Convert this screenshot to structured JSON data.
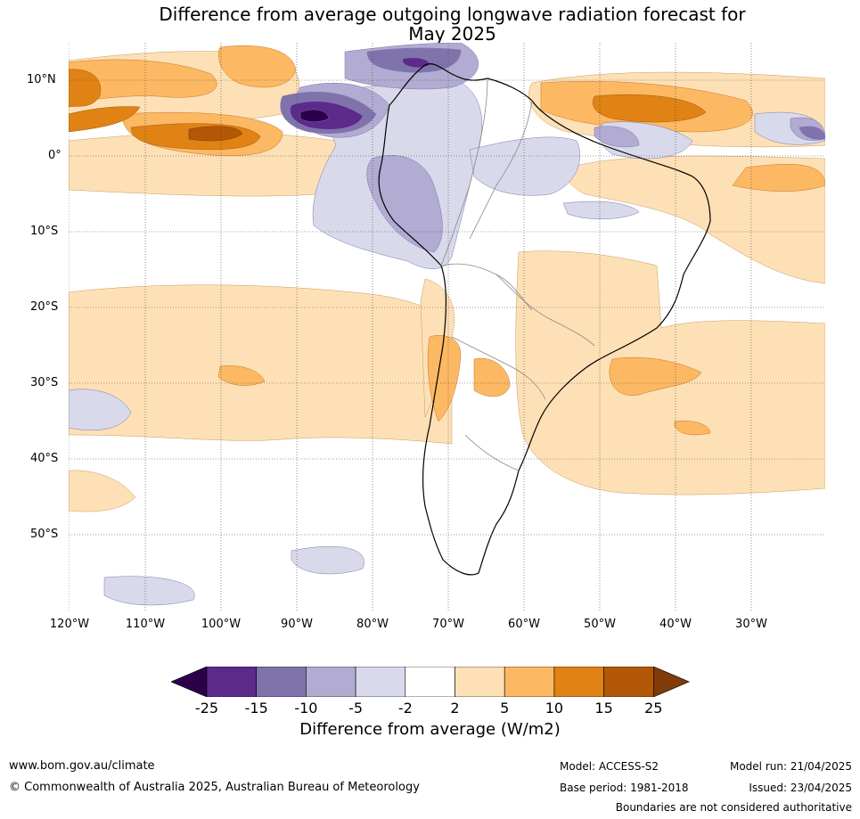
{
  "title_line1": "Difference from average outgoing longwave radiation forecast for",
  "title_line2": "May 2025",
  "lat_labels": [
    "10°N",
    "0°",
    "10°S",
    "20°S",
    "30°S",
    "40°S",
    "50°S"
  ],
  "lon_labels": [
    "120°W",
    "110°W",
    "100°W",
    "90°W",
    "80°W",
    "70°W",
    "60°W",
    "50°W",
    "40°W",
    "30°W"
  ],
  "colorbar": {
    "ticks": [
      "-25",
      "-15",
      "-10",
      "-5",
      "-2",
      "2",
      "5",
      "10",
      "15",
      "25"
    ],
    "colors": [
      "#2d004b",
      "#5c2a8a",
      "#8073ac",
      "#b2abd2",
      "#d8daeb",
      "#ffffff",
      "#fee0b6",
      "#fdb863",
      "#e08214",
      "#b35806",
      "#7f3b08"
    ],
    "label": "Difference from average (W/m2)"
  },
  "footer": {
    "website": "www.bom.gov.au/climate",
    "copyright": "© Commonwealth of Australia 2025, Australian Bureau of Meteorology",
    "model": "Model: ACCESS-S2",
    "base_period": "Base period: 1981-2018",
    "model_run": "Model run: 21/04/2025",
    "issued": "Issued: 23/04/2025",
    "disclaimer": "Boundaries are not considered authoritative"
  }
}
